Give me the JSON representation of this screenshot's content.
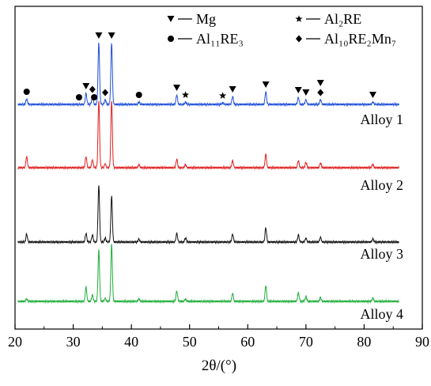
{
  "chart_data": {
    "type": "line",
    "title": "",
    "xlabel": "2θ/(°)",
    "ylabel": "",
    "xlim": [
      20,
      90
    ],
    "x_ticks": [
      20,
      30,
      40,
      50,
      60,
      70,
      80,
      90
    ],
    "y_ticks_shown": false,
    "grid": false,
    "legend_position": "top-right",
    "legend": [
      {
        "marker": "triangle-down",
        "label": "Mg"
      },
      {
        "marker": "star",
        "label": "Al₂RE"
      },
      {
        "marker": "circle",
        "label": "Al₁₁RE₃"
      },
      {
        "marker": "diamond",
        "label": "Al₁₀RE₂Mn₇"
      }
    ],
    "series": [
      {
        "name": "Alloy 1",
        "color": "#1f4fd8",
        "peaks": [
          {
            "x": 22.0,
            "h": 7
          },
          {
            "x": 32.2,
            "h": 14
          },
          {
            "x": 33.3,
            "h": 10
          },
          {
            "x": 34.4,
            "h": 78
          },
          {
            "x": 35.5,
            "h": 6
          },
          {
            "x": 36.6,
            "h": 78
          },
          {
            "x": 41.3,
            "h": 3
          },
          {
            "x": 47.8,
            "h": 12
          },
          {
            "x": 49.3,
            "h": 3
          },
          {
            "x": 55.7,
            "h": 2
          },
          {
            "x": 57.4,
            "h": 10
          },
          {
            "x": 63.1,
            "h": 16
          },
          {
            "x": 68.7,
            "h": 9
          },
          {
            "x": 70.0,
            "h": 6
          },
          {
            "x": 72.5,
            "h": 6
          },
          {
            "x": 81.5,
            "h": 3
          }
        ]
      },
      {
        "name": "Alloy 2",
        "color": "#e02020",
        "peaks": [
          {
            "x": 22.0,
            "h": 14
          },
          {
            "x": 32.2,
            "h": 14
          },
          {
            "x": 33.3,
            "h": 10
          },
          {
            "x": 34.4,
            "h": 85
          },
          {
            "x": 35.5,
            "h": 5
          },
          {
            "x": 36.6,
            "h": 85
          },
          {
            "x": 41.3,
            "h": 4
          },
          {
            "x": 47.8,
            "h": 11
          },
          {
            "x": 49.3,
            "h": 4
          },
          {
            "x": 57.4,
            "h": 9
          },
          {
            "x": 63.1,
            "h": 17
          },
          {
            "x": 68.7,
            "h": 9
          },
          {
            "x": 70.0,
            "h": 7
          },
          {
            "x": 72.5,
            "h": 6
          },
          {
            "x": 81.5,
            "h": 4
          }
        ]
      },
      {
        "name": "Alloy 3",
        "color": "#111111",
        "peaks": [
          {
            "x": 22.0,
            "h": 10
          },
          {
            "x": 32.2,
            "h": 11
          },
          {
            "x": 33.3,
            "h": 9
          },
          {
            "x": 34.4,
            "h": 72
          },
          {
            "x": 35.5,
            "h": 5
          },
          {
            "x": 36.6,
            "h": 58
          },
          {
            "x": 41.3,
            "h": 4
          },
          {
            "x": 47.8,
            "h": 11
          },
          {
            "x": 49.3,
            "h": 5
          },
          {
            "x": 57.4,
            "h": 10
          },
          {
            "x": 63.1,
            "h": 18
          },
          {
            "x": 68.7,
            "h": 9
          },
          {
            "x": 70.0,
            "h": 5
          },
          {
            "x": 72.5,
            "h": 6
          },
          {
            "x": 81.5,
            "h": 4
          }
        ]
      },
      {
        "name": "Alloy 4",
        "color": "#1fae3a",
        "peaks": [
          {
            "x": 22.0,
            "h": 3
          },
          {
            "x": 32.2,
            "h": 18
          },
          {
            "x": 33.3,
            "h": 8
          },
          {
            "x": 34.4,
            "h": 65
          },
          {
            "x": 35.5,
            "h": 4
          },
          {
            "x": 36.6,
            "h": 72
          },
          {
            "x": 41.3,
            "h": 3
          },
          {
            "x": 47.8,
            "h": 13
          },
          {
            "x": 49.3,
            "h": 3
          },
          {
            "x": 57.4,
            "h": 10
          },
          {
            "x": 63.1,
            "h": 20
          },
          {
            "x": 68.7,
            "h": 11
          },
          {
            "x": 70.0,
            "h": 6
          },
          {
            "x": 72.5,
            "h": 5
          },
          {
            "x": 81.5,
            "h": 4
          }
        ]
      }
    ],
    "phase_markers": [
      {
        "x": 22.0,
        "marker": "circle"
      },
      {
        "x": 31.0,
        "marker": "circle"
      },
      {
        "x": 32.2,
        "marker": "triangle-down"
      },
      {
        "x": 33.3,
        "marker": "diamond"
      },
      {
        "x": 33.6,
        "marker": "circle"
      },
      {
        "x": 34.4,
        "marker": "triangle-down"
      },
      {
        "x": 35.5,
        "marker": "diamond"
      },
      {
        "x": 36.6,
        "marker": "triangle-down"
      },
      {
        "x": 41.3,
        "marker": "circle"
      },
      {
        "x": 47.8,
        "marker": "triangle-down"
      },
      {
        "x": 49.3,
        "marker": "star"
      },
      {
        "x": 55.7,
        "marker": "star"
      },
      {
        "x": 57.4,
        "marker": "triangle-down"
      },
      {
        "x": 63.1,
        "marker": "triangle-down"
      },
      {
        "x": 68.7,
        "marker": "triangle-down"
      },
      {
        "x": 70.0,
        "marker": "triangle-down"
      },
      {
        "x": 72.5,
        "marker": "diamond"
      },
      {
        "x": 72.5,
        "marker": "triangle-down"
      },
      {
        "x": 81.5,
        "marker": "triangle-down"
      }
    ]
  }
}
